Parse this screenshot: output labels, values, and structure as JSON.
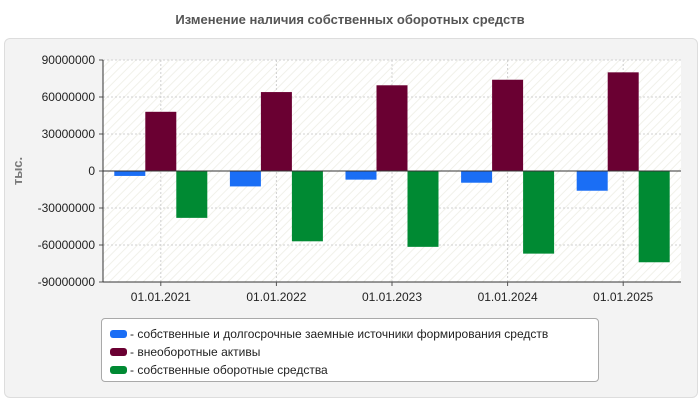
{
  "chart_data": {
    "type": "bar",
    "title": "Изменение наличия собственных оборотных средств",
    "ylabel": "тыс.",
    "xlabel": "",
    "ylim": [
      -90000000,
      90000000
    ],
    "yticks": [
      90000000,
      60000000,
      30000000,
      0,
      -30000000,
      -60000000,
      -90000000
    ],
    "ytick_labels": [
      "90000000",
      "60000000",
      "30000000",
      "0",
      "-30000000",
      "-60000000",
      "-90000000"
    ],
    "categories": [
      "01.01.2021",
      "01.01.2022",
      "01.01.2023",
      "01.01.2024",
      "01.01.2025"
    ],
    "grid": true,
    "legend_position": "bottom",
    "series": [
      {
        "name": "- собственные и долгосрочные заемные источники формирования средств",
        "color": "#1a6ef5",
        "values": [
          -4000000,
          -12500000,
          -7000000,
          -9500000,
          -16000000
        ]
      },
      {
        "name": "- внеоборотные активы",
        "color": "#6a0032",
        "values": [
          48000000,
          64000000,
          69500000,
          74000000,
          80000000
        ]
      },
      {
        "name": "- собственные оборотные средства",
        "color": "#008a33",
        "values": [
          -38000000,
          -57000000,
          -61500000,
          -67000000,
          -74000000
        ]
      }
    ]
  }
}
